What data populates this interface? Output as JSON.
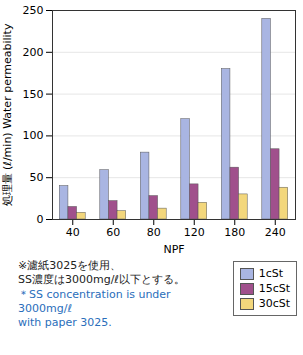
{
  "chart_data": {
    "type": "bar",
    "categories": [
      "40",
      "60",
      "80",
      "120",
      "180",
      "240"
    ],
    "x_label": "NPF",
    "y_label": "処理量 (ℓ/min) Water permeability",
    "series": [
      {
        "name": "1cSt",
        "color": "#a9b5e2",
        "values": [
          40,
          59,
          80,
          120,
          180,
          240
        ]
      },
      {
        "name": "15cSt",
        "color": "#a0508c",
        "values": [
          15,
          22,
          28,
          42,
          62,
          84
        ]
      },
      {
        "name": "30cSt",
        "color": "#f3d77c",
        "values": [
          8,
          10,
          13,
          20,
          30,
          38
        ]
      }
    ],
    "ylim": [
      0,
      250
    ],
    "yticks": [
      0,
      50,
      100,
      150,
      200,
      250
    ],
    "grid": true,
    "legend": "bottom-right",
    "annotations": [
      "※濾紙3025を使用、\nSS濃度は3000mg/ℓ以下とする。",
      "＊SS concentration is under 3000mg/ℓ\nwith paper 3025."
    ]
  }
}
